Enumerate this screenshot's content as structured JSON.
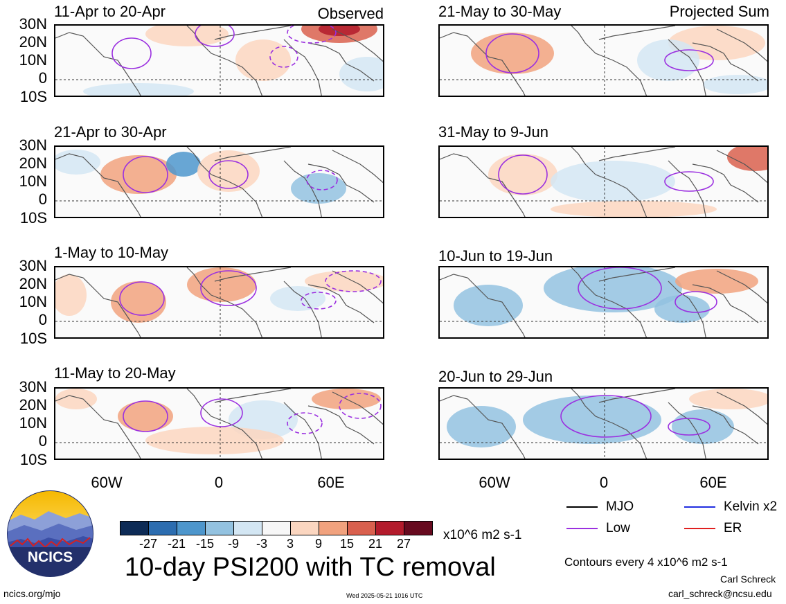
{
  "figure": {
    "title": "10-day PSI200 with TC removal",
    "observed_label": "Observed",
    "projected_label": "Projected Sum",
    "units": "x10^6 m2 s-1",
    "contour_note": "Contours every 4 x10^6 m2 s-1",
    "author": "Carl Schreck",
    "email": "carl_schreck@ncsu.edu",
    "site": "ncics.org/mjo",
    "timestamp": "Wed 2025-05-21 1016 UTC",
    "logo_text": "NCICS"
  },
  "lat_labels": [
    "30N",
    "20N",
    "10N",
    "0",
    "10S"
  ],
  "lon_labels": [
    "60W",
    "0",
    "60E"
  ],
  "panels_left": [
    {
      "period": "11-Apr to 20-Apr"
    },
    {
      "period": "21-Apr to 30-Apr"
    },
    {
      "period": "1-May to 10-May"
    },
    {
      "period": "11-May to 20-May"
    }
  ],
  "panels_right": [
    {
      "period": "21-May to 30-May"
    },
    {
      "period": "31-May to 9-Jun"
    },
    {
      "period": "10-Jun to 19-Jun"
    },
    {
      "period": "20-Jun to 29-Jun"
    }
  ],
  "colorbar": {
    "colors": [
      "#0d2b56",
      "#2c6db0",
      "#4d96cc",
      "#93c2e0",
      "#d3e6f3",
      "#f7f7f7",
      "#fbd6c0",
      "#f1a27e",
      "#d9604e",
      "#b31b2c",
      "#670a1f"
    ],
    "ticks": [
      "-27",
      "-21",
      "-15",
      "-9",
      "-3",
      "3",
      "9",
      "15",
      "21",
      "27"
    ]
  },
  "legend": [
    {
      "label": "MJO",
      "color": "#000000"
    },
    {
      "label": "Kelvin x2",
      "color": "#1f2de0"
    },
    {
      "label": "Low",
      "color": "#9b30e0"
    },
    {
      "label": "ER",
      "color": "#e02020"
    }
  ]
}
